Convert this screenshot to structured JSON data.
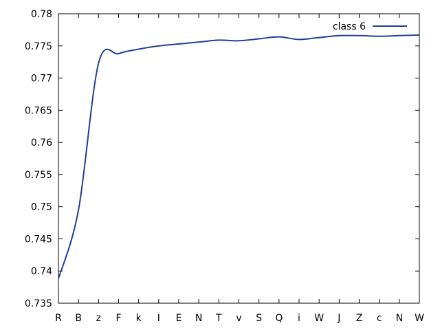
{
  "chart_data": {
    "type": "line",
    "title": "",
    "xlabel": "",
    "ylabel": "",
    "categories": [
      "R",
      "B",
      "z",
      "F",
      "k",
      "I",
      "E",
      "N",
      "T",
      "v",
      "S",
      "Q",
      "i",
      "W",
      "J",
      "Z",
      "c",
      "N",
      "W"
    ],
    "ylim": [
      0.735,
      0.78
    ],
    "yticks": [
      0.735,
      0.74,
      0.745,
      0.75,
      0.755,
      0.76,
      0.765,
      0.77,
      0.775,
      0.78
    ],
    "ytick_labels": [
      "0.735",
      "0.74",
      "0.745",
      "0.75",
      "0.755",
      "0.76",
      "0.765",
      "0.77",
      "0.775",
      "0.78"
    ],
    "grid": false,
    "legend": {
      "position": "top-right",
      "entries": [
        "class 6"
      ]
    },
    "series": [
      {
        "name": "class 6",
        "color": "#1f3f99",
        "values": [
          0.7388,
          0.7495,
          0.7723,
          0.7738,
          0.7745,
          0.775,
          0.7753,
          0.7756,
          0.7759,
          0.7758,
          0.7761,
          0.7764,
          0.776,
          0.7763,
          0.7766,
          0.7766,
          0.7765,
          0.7766,
          0.7767
        ]
      }
    ]
  }
}
